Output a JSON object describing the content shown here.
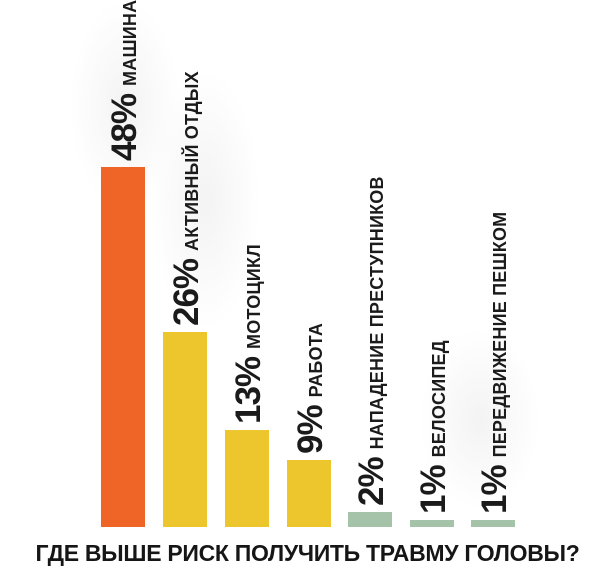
{
  "title": "ГДЕ ВЫШЕ РИСК ПОЛУЧИТЬ ТРАВМУ ГОЛОВЫ?",
  "colors": {
    "highest_risk_bar": "#EE6527",
    "medium_risk_bar": "#EDC62D",
    "low_risk_bar": "#A4C3A9",
    "text": "#1B1B1B",
    "background": "#FFFFFF"
  },
  "chart_data": {
    "type": "bar",
    "orientation": "vertical",
    "unit": "percent",
    "title": "ГДЕ ВЫШЕ РИСК ПОЛУЧИТЬ ТРАВМУ ГОЛОВЫ?",
    "categories": [
      "МАШИНА",
      "АКТИВНЫЙ ОТДЫХ",
      "МОТОЦИКЛ",
      "РАБОТА",
      "НАПАДЕНИЕ ПРЕСТУПНИКОВ",
      "ВЕЛОСИПЕД",
      "ПЕРЕДВИЖЕНИЕ ПЕШКОМ"
    ],
    "values": [
      48,
      26,
      13,
      9,
      2,
      1,
      1
    ],
    "value_labels": [
      "48%",
      "26%",
      "13%",
      "9%",
      "2%",
      "1%",
      "1%"
    ],
    "bar_colors": [
      "#EE6527",
      "#EDC62D",
      "#EDC62D",
      "#EDC62D",
      "#A4C3A9",
      "#A4C3A9",
      "#A4C3A9"
    ],
    "ylim": [
      0,
      48
    ],
    "grid": false,
    "legend": false,
    "axes_shown": false,
    "label_style": "rotated-90-above-bar"
  }
}
